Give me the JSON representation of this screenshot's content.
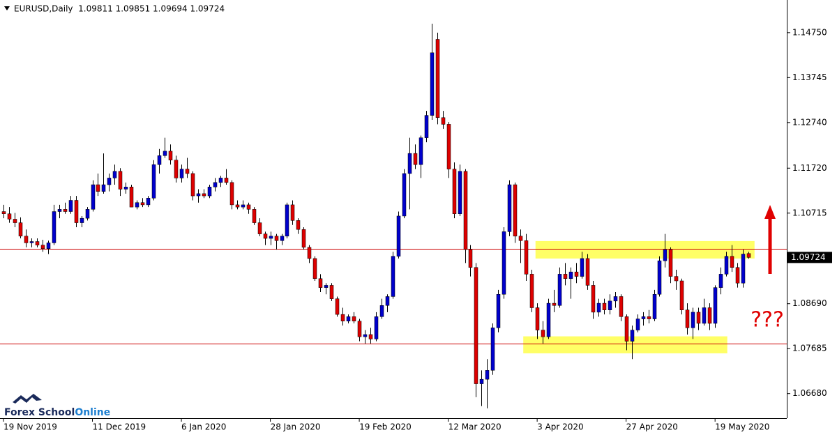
{
  "chart_data": {
    "type": "candlestick",
    "title": "EURUSD,Daily  1.09811 1.09851 1.09694 1.09724",
    "categories": [
      "19 Nov 2019",
      null,
      null,
      null,
      null,
      null,
      null,
      null,
      null,
      null,
      null,
      null,
      null,
      null,
      null,
      null,
      "11 Dec 2019",
      null,
      null,
      null,
      null,
      null,
      null,
      null,
      null,
      null,
      null,
      null,
      null,
      null,
      null,
      null,
      "6 Jan 2020",
      null,
      null,
      null,
      null,
      null,
      null,
      null,
      null,
      null,
      null,
      null,
      null,
      null,
      null,
      null,
      "28 Jan 2020",
      null,
      null,
      null,
      null,
      null,
      null,
      null,
      null,
      null,
      null,
      null,
      null,
      null,
      null,
      null,
      "19 Feb 2020",
      null,
      null,
      null,
      null,
      null,
      null,
      null,
      null,
      null,
      null,
      null,
      null,
      null,
      null,
      null,
      "12 Mar 2020",
      null,
      null,
      null,
      null,
      null,
      null,
      null,
      null,
      null,
      null,
      null,
      null,
      null,
      null,
      null,
      "3 Apr 2020",
      null,
      null,
      null,
      null,
      null,
      null,
      null,
      null,
      null,
      null,
      null,
      null,
      null,
      null,
      null,
      "27 Apr 2020",
      null,
      null,
      null,
      null,
      null,
      null,
      null,
      null,
      null,
      null,
      null,
      null,
      null,
      null,
      null,
      "19 May 2020",
      null,
      null,
      null,
      null,
      null,
      null
    ],
    "open": [
      1.1075,
      1.107,
      1.1058,
      1.105,
      1.102,
      1.1005,
      1.1008,
      1.1,
      1.0992,
      1.1005,
      1.1075,
      1.108,
      1.1075,
      1.11,
      1.105,
      1.106,
      1.108,
      1.1135,
      1.112,
      1.1135,
      1.115,
      1.1165,
      1.1125,
      1.113,
      1.1085,
      1.1095,
      1.109,
      1.1105,
      1.118,
      1.12,
      1.121,
      1.119,
      1.115,
      1.117,
      1.116,
      1.111,
      1.1115,
      1.111,
      1.113,
      1.114,
      1.115,
      1.114,
      1.109,
      1.1085,
      1.109,
      1.108,
      1.105,
      1.1025,
      1.1015,
      1.102,
      1.101,
      1.102,
      1.109,
      1.1055,
      1.1035,
      1.0995,
      1.097,
      1.0925,
      1.0905,
      1.091,
      1.088,
      1.0845,
      1.083,
      1.084,
      1.083,
      1.0795,
      1.08,
      1.079,
      1.084,
      1.0865,
      1.0885,
      1.0975,
      1.1065,
      1.116,
      1.1205,
      1.118,
      1.124,
      1.129,
      1.146,
      1.1285,
      1.127,
      1.117,
      1.107,
      1.1165,
      1.099,
      1.095,
      1.069,
      1.07,
      1.072,
      1.0815,
      1.089,
      1.103,
      1.1135,
      1.102,
      1.101,
      1.0935,
      1.086,
      1.081,
      1.0795,
      1.087,
      1.0865,
      1.0935,
      1.0925,
      1.094,
      1.093,
      1.097,
      1.091,
      1.085,
      1.087,
      1.0855,
      1.0875,
      1.0885,
      1.084,
      1.0785,
      1.081,
      1.0835,
      1.084,
      1.0835,
      1.089,
      1.0965,
      1.099,
      1.093,
      1.092,
      1.0855,
      1.0815,
      1.085,
      1.0825,
      1.086,
      1.0825,
      1.0905,
      1.0935,
      1.0975,
      1.095,
      1.0915,
      1.09811
    ],
    "high": [
      1.109,
      1.1085,
      1.1072,
      1.1062,
      1.1035,
      1.1015,
      1.1015,
      1.1012,
      1.101,
      1.109,
      1.109,
      1.1095,
      1.111,
      1.111,
      1.1065,
      1.1085,
      1.1145,
      1.116,
      1.1205,
      1.116,
      1.118,
      1.1172,
      1.114,
      1.1135,
      1.11,
      1.1105,
      1.111,
      1.119,
      1.1215,
      1.124,
      1.1225,
      1.12,
      1.118,
      1.1195,
      1.1165,
      1.1125,
      1.1125,
      1.1135,
      1.115,
      1.1155,
      1.117,
      1.1145,
      1.11,
      1.11,
      1.1095,
      1.1085,
      1.106,
      1.103,
      1.103,
      1.1025,
      1.1025,
      1.1095,
      1.11,
      1.106,
      1.104,
      1.1,
      1.0975,
      1.0935,
      1.0915,
      1.0915,
      1.0885,
      1.086,
      1.0845,
      1.085,
      1.0835,
      1.081,
      1.0815,
      1.085,
      1.088,
      1.089,
      1.0985,
      1.1075,
      1.117,
      1.124,
      1.1225,
      1.1245,
      1.13,
      1.1495,
      1.1475,
      1.13,
      1.1275,
      1.1185,
      1.118,
      1.117,
      1.1,
      1.096,
      1.072,
      1.0745,
      1.0825,
      1.09,
      1.104,
      1.1145,
      1.114,
      1.1035,
      1.1025,
      1.0945,
      1.087,
      1.083,
      1.088,
      1.09,
      1.095,
      1.096,
      1.095,
      1.096,
      1.0985,
      1.098,
      1.092,
      1.088,
      1.088,
      1.089,
      1.0895,
      1.089,
      1.0845,
      1.082,
      1.0845,
      1.085,
      1.0855,
      1.09,
      1.0975,
      1.1025,
      1.0995,
      1.0945,
      1.0925,
      1.087,
      1.086,
      1.086,
      1.088,
      1.087,
      1.091,
      1.095,
      1.0985,
      1.1,
      1.096,
      1.099,
      1.09851
    ],
    "low": [
      1.106,
      1.105,
      1.104,
      1.1015,
      1.0995,
      1.0995,
      1.0995,
      1.0985,
      1.098,
      1.1,
      1.106,
      1.107,
      1.107,
      1.104,
      1.104,
      1.1055,
      1.1075,
      1.111,
      1.1115,
      1.112,
      1.1135,
      1.111,
      1.1115,
      1.1085,
      1.108,
      1.1085,
      1.1085,
      1.11,
      1.116,
      1.1195,
      1.118,
      1.114,
      1.114,
      1.115,
      1.11,
      1.1095,
      1.1105,
      1.1105,
      1.112,
      1.113,
      1.1135,
      1.108,
      1.108,
      1.108,
      1.107,
      1.1045,
      1.102,
      1.1,
      1.1,
      1.099,
      1.1,
      1.1015,
      1.1045,
      1.1025,
      1.099,
      1.096,
      1.092,
      1.0895,
      1.089,
      1.0875,
      1.084,
      1.082,
      1.0825,
      1.0825,
      1.0785,
      1.078,
      1.078,
      1.0785,
      1.0835,
      1.085,
      1.088,
      1.097,
      1.106,
      1.108,
      1.117,
      1.115,
      1.123,
      1.128,
      1.127,
      1.126,
      1.115,
      1.106,
      1.1065,
      1.096,
      1.093,
      1.066,
      1.064,
      1.0635,
      1.071,
      1.0805,
      1.088,
      1.102,
      1.1005,
      1.096,
      1.092,
      1.085,
      1.079,
      1.078,
      1.079,
      1.085,
      1.086,
      1.091,
      1.088,
      1.0915,
      1.0925,
      1.09,
      1.0835,
      1.084,
      1.0845,
      1.0845,
      1.086,
      1.083,
      1.0765,
      1.0745,
      1.0805,
      1.082,
      1.0825,
      1.083,
      1.0885,
      1.095,
      1.0915,
      1.09,
      1.0845,
      1.08,
      1.079,
      1.081,
      1.082,
      1.081,
      1.0815,
      1.089,
      1.093,
      1.094,
      1.0905,
      1.0905,
      1.09694
    ],
    "close": [
      1.107,
      1.1058,
      1.105,
      1.102,
      1.1005,
      1.1008,
      1.1,
      1.0992,
      1.1005,
      1.1075,
      1.108,
      1.1075,
      1.11,
      1.105,
      1.106,
      1.108,
      1.1135,
      1.112,
      1.1135,
      1.115,
      1.1165,
      1.1125,
      1.113,
      1.1085,
      1.1095,
      1.109,
      1.1105,
      1.118,
      1.12,
      1.121,
      1.119,
      1.115,
      1.117,
      1.116,
      1.111,
      1.1115,
      1.111,
      1.113,
      1.114,
      1.115,
      1.114,
      1.109,
      1.1085,
      1.109,
      1.108,
      1.105,
      1.1025,
      1.1015,
      1.102,
      1.101,
      1.102,
      1.109,
      1.1055,
      1.1035,
      1.0995,
      1.097,
      1.0925,
      1.0905,
      1.091,
      1.088,
      1.0845,
      1.083,
      1.084,
      1.083,
      1.0795,
      1.08,
      1.079,
      1.084,
      1.0865,
      1.0885,
      1.0975,
      1.1065,
      1.116,
      1.1205,
      1.118,
      1.124,
      1.129,
      1.143,
      1.1285,
      1.127,
      1.117,
      1.107,
      1.1165,
      1.099,
      1.095,
      1.069,
      1.07,
      1.072,
      1.0815,
      1.089,
      1.103,
      1.1135,
      1.102,
      1.101,
      1.0935,
      1.086,
      1.081,
      1.0795,
      1.087,
      1.0865,
      1.0935,
      1.0925,
      1.094,
      1.093,
      1.097,
      1.091,
      1.085,
      1.087,
      1.0855,
      1.0875,
      1.0885,
      1.084,
      1.0785,
      1.081,
      1.0835,
      1.084,
      1.0835,
      1.089,
      1.0965,
      1.099,
      1.093,
      1.092,
      1.0855,
      1.0815,
      1.085,
      1.0825,
      1.086,
      1.0825,
      1.0905,
      1.0935,
      1.0975,
      1.095,
      1.0915,
      1.098,
      1.09724
    ],
    "up_color": "#0000cc",
    "down_color": "#dd0000",
    "ylim": [
      1.0613,
      1.1548
    ],
    "yticks": [
      {
        "value": 1.1475,
        "label": "1.14750"
      },
      1.13745,
      {
        "value": 1.1274,
        "label": "1.12740"
      },
      {
        "value": 1.1172,
        "label": "1.11720"
      },
      1.10715,
      {
        "value": 1.0869,
        "label": "1.08690"
      },
      1.07685,
      {
        "value": 1.0668,
        "label": "1.06680"
      }
    ],
    "last_price": 1.09724,
    "levels": [
      1.0992,
      1.0779
    ],
    "level_color": "#cc0000",
    "zones": [
      [
        1.097,
        1.1009
      ],
      [
        1.0758,
        1.0796
      ]
    ],
    "zone_color": "#ffff66",
    "annotation": "???",
    "logo": {
      "text": "Forex School",
      "highlight": "Online"
    }
  }
}
